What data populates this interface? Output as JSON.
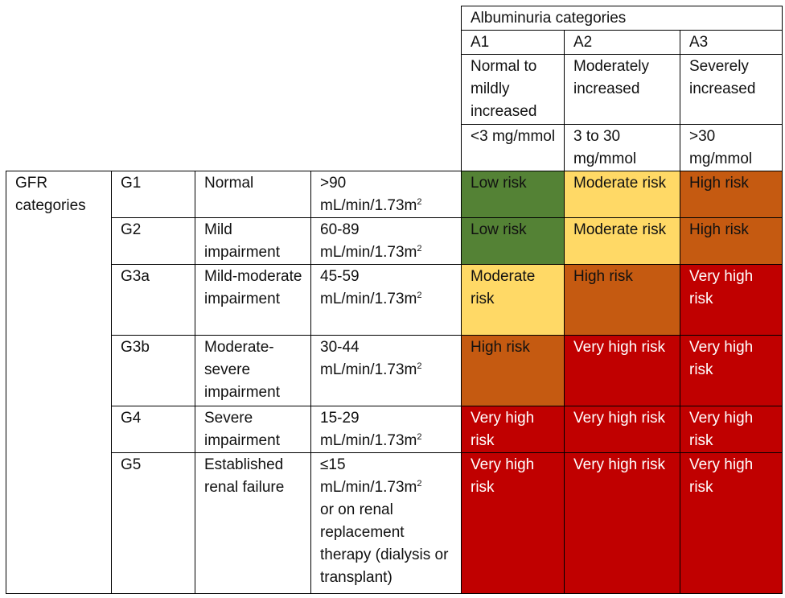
{
  "header": {
    "albuminuria_title": "Albuminuria categories",
    "columns": [
      {
        "code": "A1",
        "desc": "Normal to mildly increased",
        "range": "<3 mg/mmol"
      },
      {
        "code": "A2",
        "desc": "Moderately increased",
        "range": "3 to 30 mg/mmol"
      },
      {
        "code": "A3",
        "desc": "Severely increased",
        "range": ">30 mg/mmol"
      }
    ]
  },
  "gfr_label": "GFR categories",
  "rows": [
    {
      "code": "G1",
      "desc": "Normal",
      "gfr": ">90",
      "unit": "mL/min/1.73m",
      "sup": "2",
      "extra": "",
      "risks": [
        "Low risk",
        "Moderate risk",
        "High risk"
      ]
    },
    {
      "code": "G2",
      "desc": "Mild impairment",
      "gfr": "60-89",
      "unit": "mL/min/1.73m",
      "sup": "2",
      "extra": "",
      "risks": [
        "Low risk",
        "Moderate risk",
        "High risk"
      ]
    },
    {
      "code": "G3a",
      "desc": "Mild-moderate impairment",
      "gfr": "45-59",
      "unit": "mL/min/1.73m",
      "sup": "2",
      "extra": "",
      "risks": [
        "Moderate risk",
        "High risk",
        "Very high risk"
      ]
    },
    {
      "code": "G3b",
      "desc": "Moderate-severe impairment",
      "gfr": "30-44",
      "unit": "mL/min/1.73m",
      "sup": "2",
      "extra": "",
      "risks": [
        "High risk",
        "Very high risk",
        "Very high risk"
      ]
    },
    {
      "code": "G4",
      "desc": "Severe impairment",
      "gfr": "15-29",
      "unit": "mL/min/1.73m",
      "sup": "2",
      "extra": "",
      "risks": [
        "Very high risk",
        "Very high risk",
        "Very high risk"
      ]
    },
    {
      "code": "G5",
      "desc": "Established renal failure",
      "gfr": "≤15",
      "unit": "mL/min/1.73m",
      "sup": "2",
      "extra": "or on renal replacement therapy (dialysis or transplant)",
      "risks": [
        "Very high risk",
        "Very high risk",
        "Very high risk"
      ]
    }
  ],
  "risk_colors": {
    "Low risk": "#548235",
    "Moderate risk": "#ffd966",
    "High risk": "#c55a11",
    "Very high risk": "#c00000"
  }
}
